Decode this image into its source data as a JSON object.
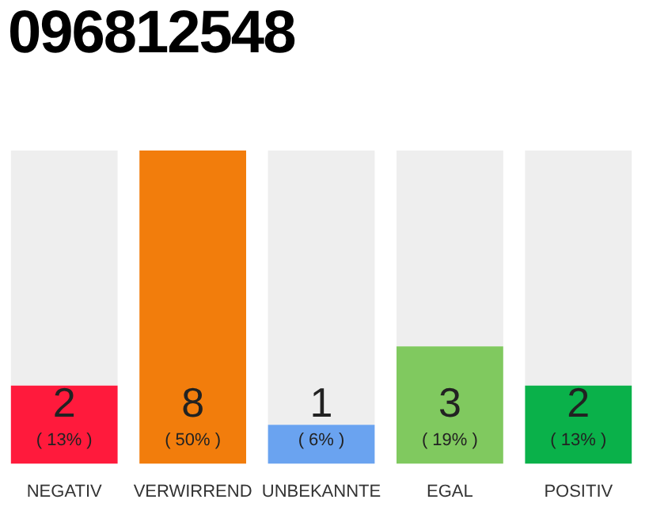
{
  "chart_data": {
    "type": "bar",
    "title": "096812548",
    "categories": [
      "NEGATIV",
      "VERWIRREND",
      "UNBEKANNTE",
      "EGAL",
      "POSITIV"
    ],
    "stacked": true,
    "ylim": [
      0,
      8
    ],
    "tick_labels": "x",
    "grid": false,
    "legend": false,
    "series": [
      {
        "values": [
          2,
          8,
          1,
          3,
          2
        ],
        "value_labels": [
          "2",
          "8",
          "1",
          "3",
          "2"
        ],
        "colors": [
          "#ff1a3c",
          "#f27d0c",
          "#6aa3f0",
          "#80c95f",
          "#0ab14a"
        ]
      },
      {
        "values": [
          6,
          0,
          7,
          5,
          6
        ],
        "color": "#eeeeee"
      }
    ],
    "annotations": [
      "( 13% )",
      "( 50% )",
      "( 6% )",
      "( 19% )",
      "( 13% )"
    ]
  }
}
